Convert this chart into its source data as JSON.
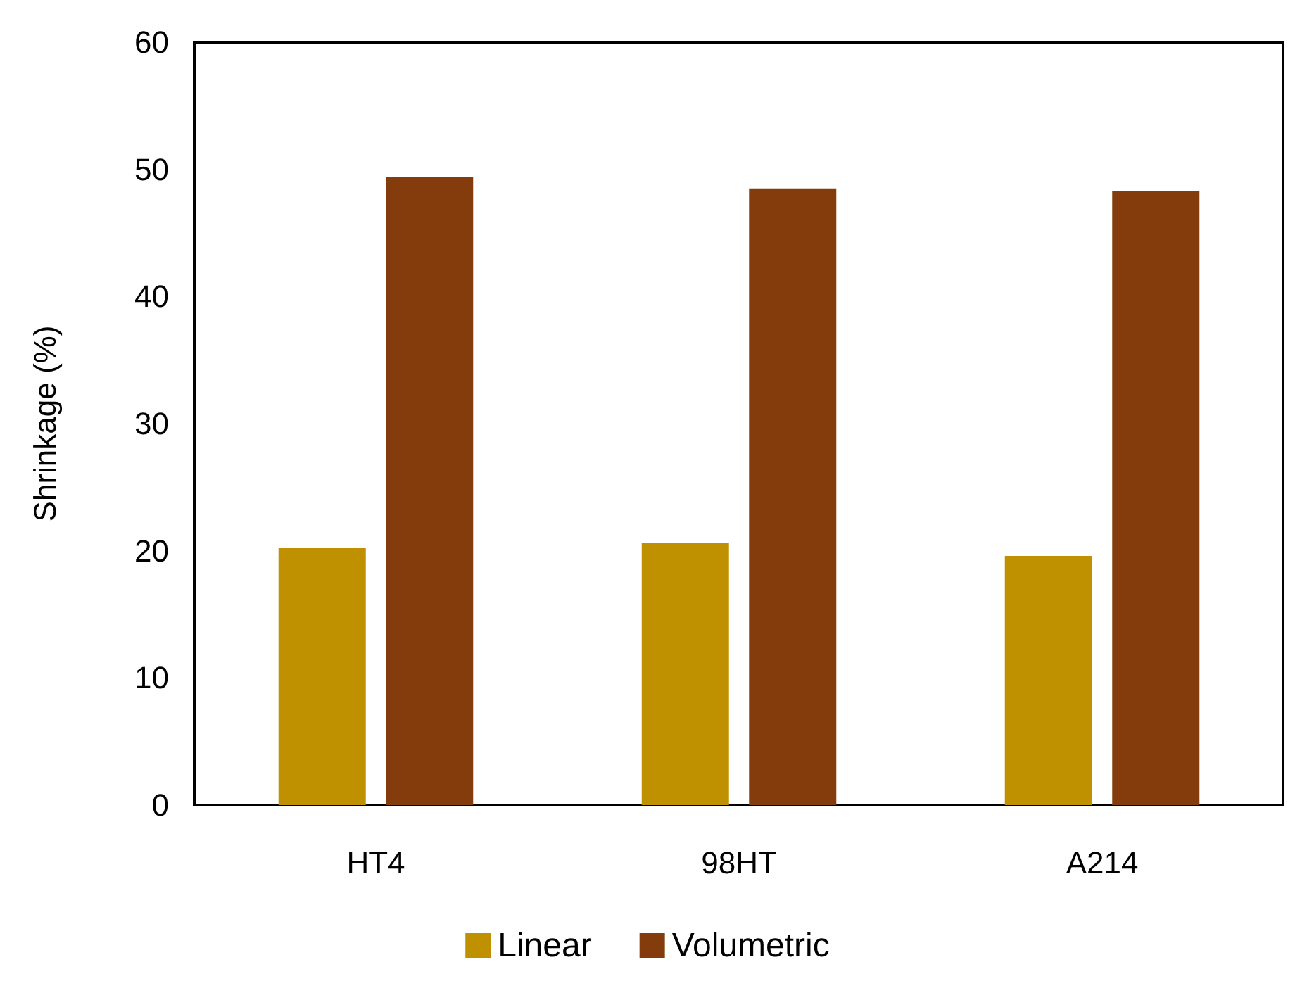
{
  "chart_data": {
    "type": "bar",
    "ylabel": "Shrinkage (%)",
    "categories": [
      "HT4",
      "98HT",
      "A214"
    ],
    "series": [
      {
        "name": "Linear",
        "color": "#bf9000",
        "values": [
          20.2,
          20.6,
          19.6
        ]
      },
      {
        "name": "Volumetric",
        "color": "#843c0c",
        "values": [
          49.4,
          48.5,
          48.3
        ]
      }
    ],
    "ylim": [
      0,
      60
    ],
    "yticks": [
      0,
      10,
      20,
      30,
      40,
      50,
      60
    ],
    "grid": false,
    "legend": "bottom"
  }
}
